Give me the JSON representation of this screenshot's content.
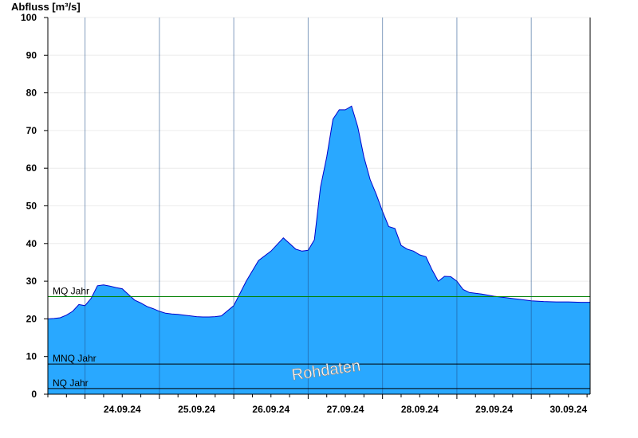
{
  "chart_data": {
    "type": "area",
    "ylabel": "Abfluss [m³/s]",
    "ylim": [
      0,
      100
    ],
    "yticks": [
      "0",
      "10",
      "20",
      "30",
      "40",
      "50",
      "60",
      "70",
      "80",
      "90",
      "100"
    ],
    "xlim": [
      "2024-09-23T12:00",
      "2024-09-30T19:00"
    ],
    "day_boundaries": [
      "2024-09-24T00:00",
      "2024-09-25T00:00",
      "2024-09-26T00:00",
      "2024-09-27T00:00",
      "2024-09-28T00:00",
      "2024-09-29T00:00",
      "2024-09-30T00:00"
    ],
    "x_labels": [
      {
        "label": "24.09.24",
        "at": "2024-09-24T12:00"
      },
      {
        "label": "25.09.24",
        "at": "2024-09-25T12:00"
      },
      {
        "label": "26.09.24",
        "at": "2024-09-26T12:00"
      },
      {
        "label": "27.09.24",
        "at": "2024-09-27T12:00"
      },
      {
        "label": "28.09.24",
        "at": "2024-09-28T12:00"
      },
      {
        "label": "29.09.24",
        "at": "2024-09-29T12:00"
      },
      {
        "label": "30.09.24",
        "at": "2024-09-30T12:00"
      }
    ],
    "grid": true,
    "fill_color": "#29a8ff",
    "line_color": "#0000cc",
    "series": [
      {
        "x": [
          "2024-09-23T12:00",
          "2024-09-23T14:00",
          "2024-09-23T16:00",
          "2024-09-23T18:00",
          "2024-09-23T20:00",
          "2024-09-23T22:00",
          "2024-09-24T00:00",
          "2024-09-24T02:00",
          "2024-09-24T04:00",
          "2024-09-24T06:00",
          "2024-09-24T08:00",
          "2024-09-24T10:00",
          "2024-09-24T12:00",
          "2024-09-24T14:00",
          "2024-09-24T16:00",
          "2024-09-24T18:00",
          "2024-09-24T20:00",
          "2024-09-24T22:00",
          "2024-09-25T00:00",
          "2024-09-25T02:00",
          "2024-09-25T04:00",
          "2024-09-25T06:00",
          "2024-09-25T08:00",
          "2024-09-25T10:00",
          "2024-09-25T12:00",
          "2024-09-25T14:00",
          "2024-09-25T16:00",
          "2024-09-25T18:00",
          "2024-09-25T20:00",
          "2024-09-26T00:00",
          "2024-09-26T04:00",
          "2024-09-26T08:00",
          "2024-09-26T12:00",
          "2024-09-26T16:00",
          "2024-09-26T20:00",
          "2024-09-26T22:00",
          "2024-09-27T00:00",
          "2024-09-27T02:00",
          "2024-09-27T04:00",
          "2024-09-27T06:00",
          "2024-09-27T08:00",
          "2024-09-27T10:00",
          "2024-09-27T12:00",
          "2024-09-27T14:00",
          "2024-09-27T16:00",
          "2024-09-27T18:00",
          "2024-09-27T20:00",
          "2024-09-27T22:00",
          "2024-09-28T00:00",
          "2024-09-28T02:00",
          "2024-09-28T04:00",
          "2024-09-28T06:00",
          "2024-09-28T08:00",
          "2024-09-28T10:00",
          "2024-09-28T12:00",
          "2024-09-28T14:00",
          "2024-09-28T16:00",
          "2024-09-28T18:00",
          "2024-09-28T20:00",
          "2024-09-28T22:00",
          "2024-09-29T00:00",
          "2024-09-29T02:00",
          "2024-09-29T04:00",
          "2024-09-29T06:00",
          "2024-09-29T08:00",
          "2024-09-29T10:00",
          "2024-09-29T12:00",
          "2024-09-29T14:00",
          "2024-09-29T16:00",
          "2024-09-29T18:00",
          "2024-09-29T20:00",
          "2024-09-29T22:00",
          "2024-09-30T00:00",
          "2024-09-30T04:00",
          "2024-09-30T08:00",
          "2024-09-30T12:00",
          "2024-09-30T16:00",
          "2024-09-30T19:00"
        ],
        "y": [
          20,
          20.1,
          20.3,
          21,
          22,
          23.8,
          23.5,
          25.5,
          28.8,
          29,
          28.7,
          28.3,
          28,
          26.5,
          25,
          24.2,
          23.3,
          22.7,
          22,
          21.5,
          21.3,
          21.2,
          21,
          20.8,
          20.6,
          20.5,
          20.5,
          20.6,
          20.8,
          23.5,
          30,
          35.5,
          38,
          41.5,
          38.5,
          38,
          38.2,
          41,
          55,
          63,
          73,
          75.5,
          75.5,
          76.5,
          71,
          63,
          57,
          53,
          48.5,
          44.5,
          44,
          39.5,
          38.5,
          38,
          37,
          36.5,
          33,
          30,
          31.3,
          31.2,
          30,
          27.8,
          27,
          26.8,
          26.6,
          26.3,
          26,
          25.8,
          25.6,
          25.4,
          25.2,
          25,
          24.8,
          24.6,
          24.5,
          24.5,
          24.4,
          24.4
        ]
      }
    ],
    "reference_lines": [
      {
        "label": "MQ Jahr",
        "value": 25.9,
        "color": "#008000"
      },
      {
        "label": "MNQ Jahr",
        "value": 8,
        "color": "#000000"
      },
      {
        "label": "NQ Jahr",
        "value": 1.5,
        "color": "#000000"
      }
    ],
    "watermark": "Rohdaten"
  }
}
